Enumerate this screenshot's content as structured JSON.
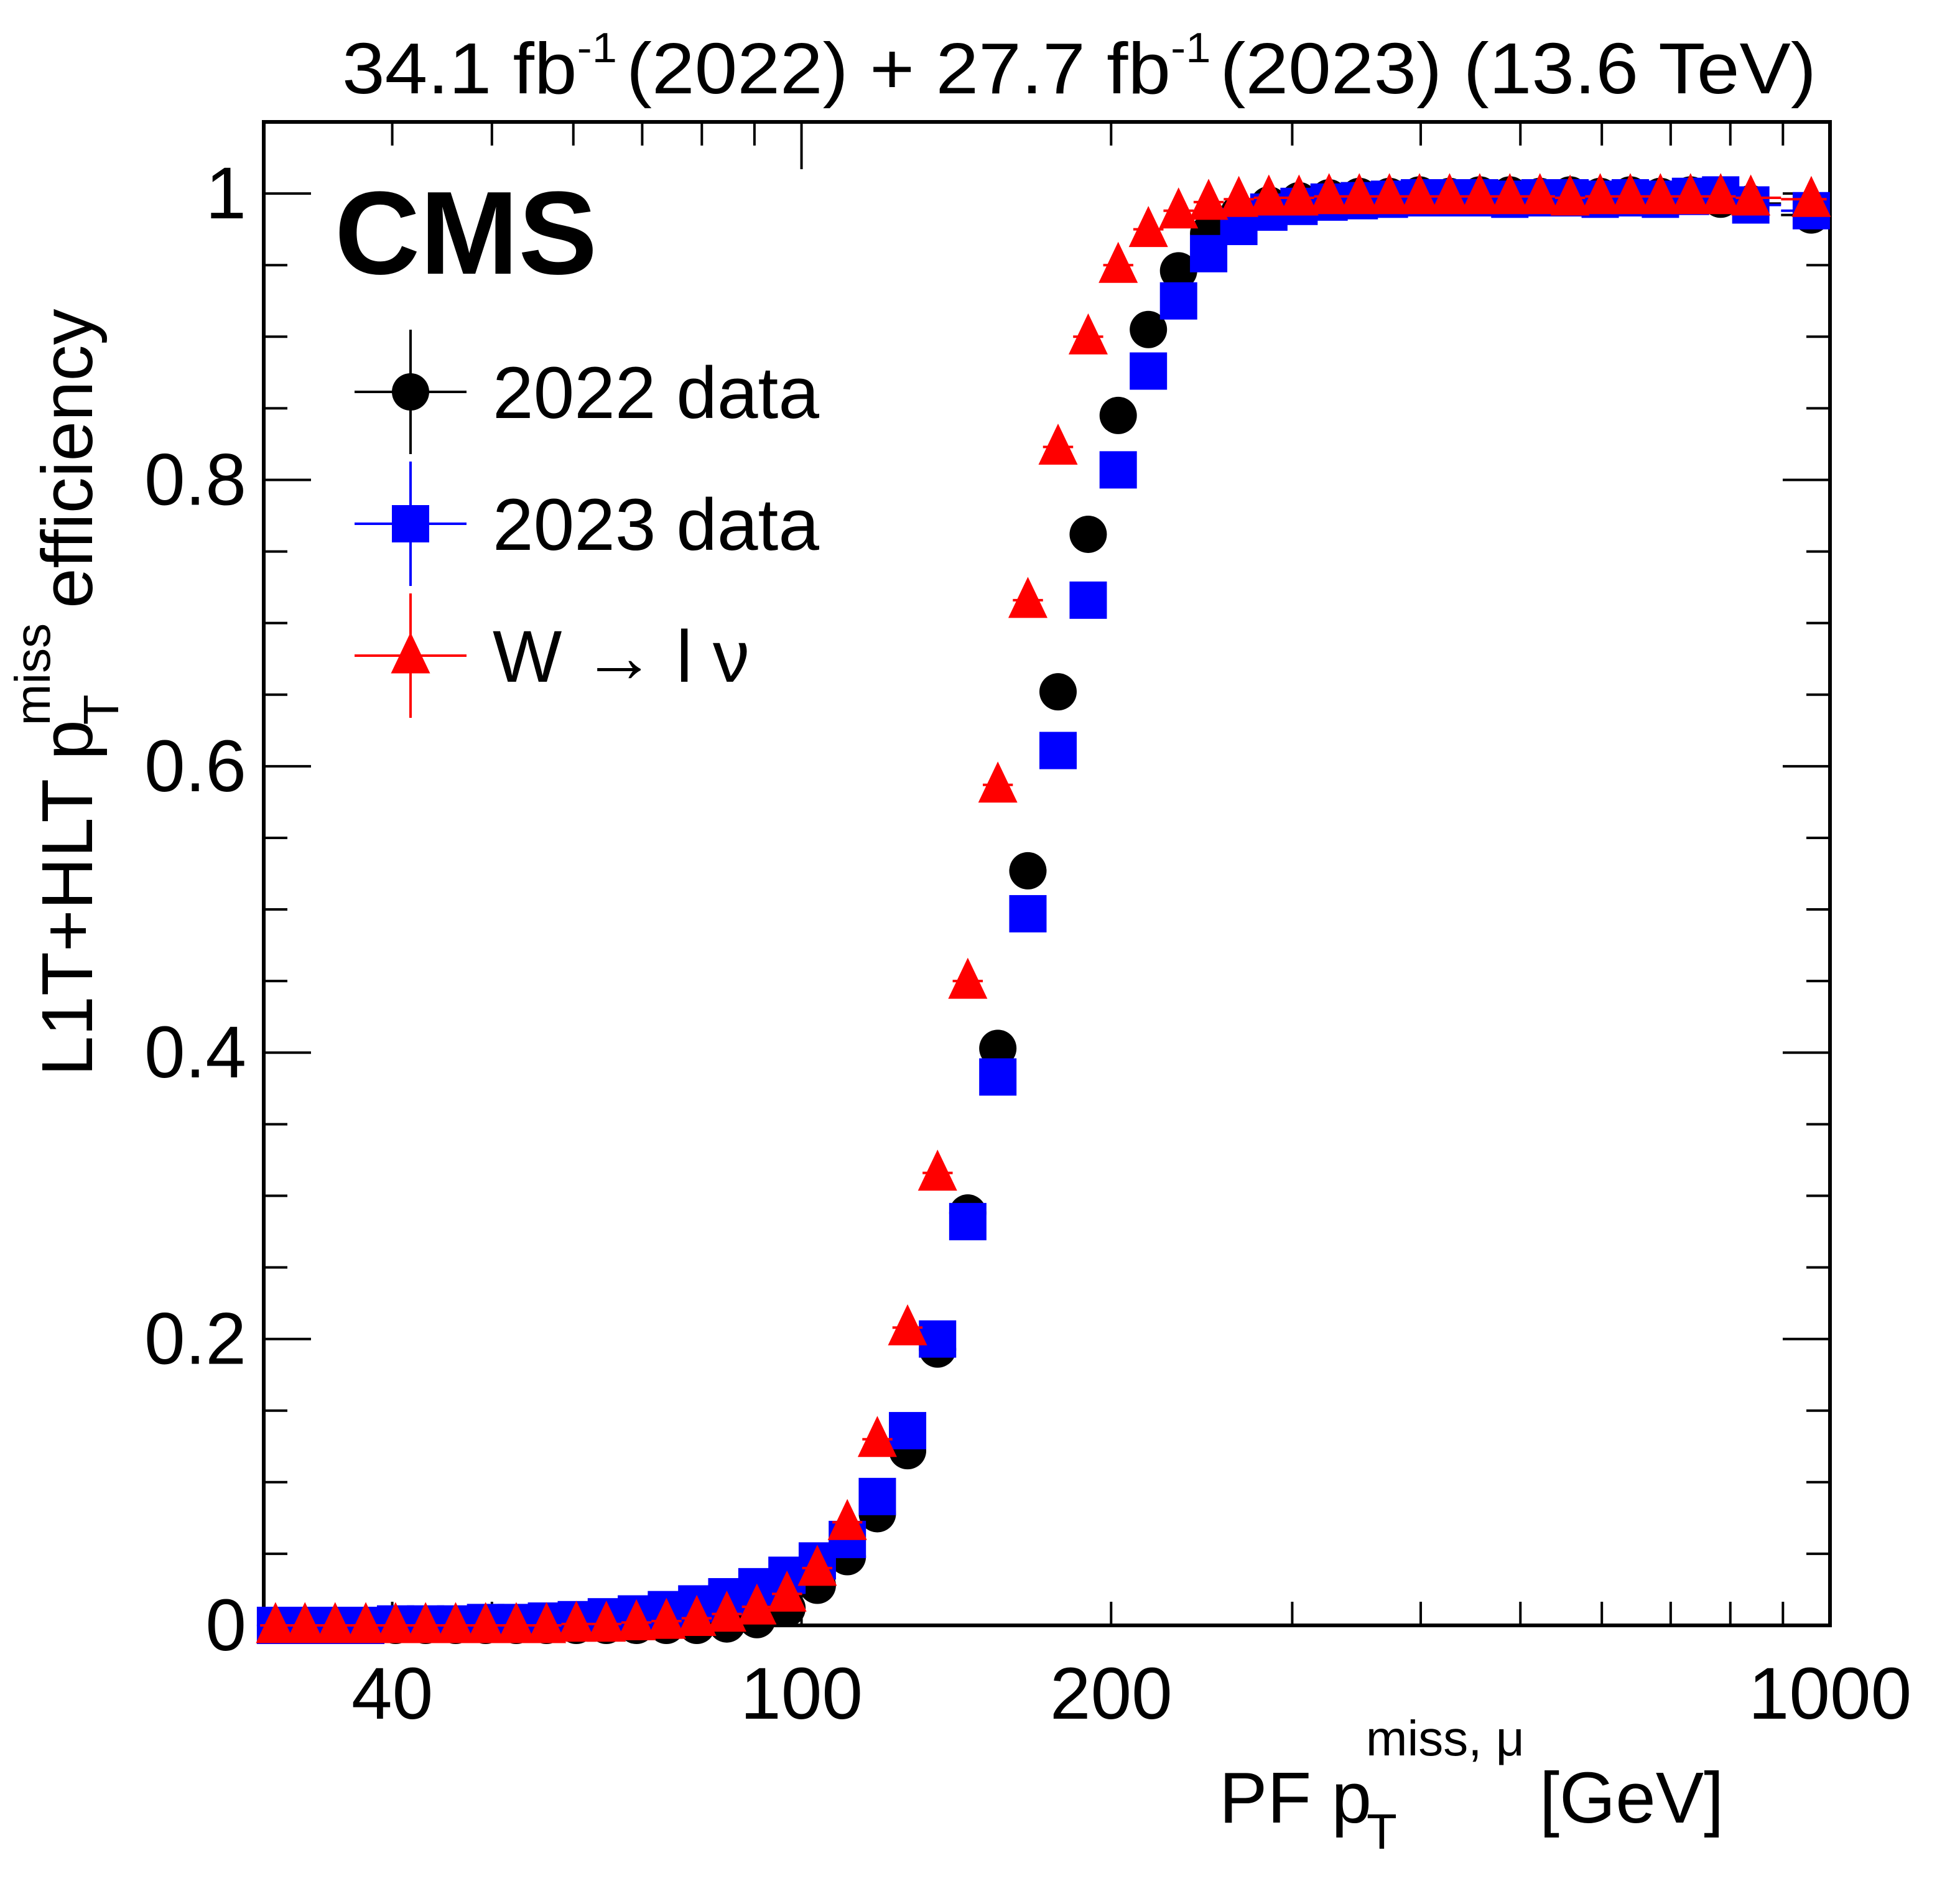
{
  "header": {
    "lumi_label": "34.1 fb",
    "lumi_exp": "-1",
    "lumi_year1": "(2022) + 27.7 fb",
    "lumi_exp2": "-1",
    "lumi_year2": "(2023) (13.6 TeV)"
  },
  "experiment_label": "CMS",
  "chart_data": {
    "type": "scatter",
    "title": "34.1 fb^-1 (2022) + 27.7 fb^-1 (2023) (13.6 TeV)",
    "xlabel": "PF p_T^{miss, μ} [GeV]",
    "xlabel_parts": {
      "main": "PF p",
      "sub": "T",
      "sup": "miss, μ",
      "unit": "[GeV]"
    },
    "ylabel": "L1T+HLT p_T^miss efficiency",
    "ylabel_parts": {
      "main": "L1T+HLT p",
      "sub": "T",
      "sup": "miss",
      "tail": "efficiency"
    },
    "xscale": "log",
    "xlim": [
      30,
      1000
    ],
    "ylim": [
      0,
      1.05
    ],
    "xticks": [
      {
        "value": 40,
        "label": "40"
      },
      {
        "value": 100,
        "label": "100"
      },
      {
        "value": 200,
        "label": "200"
      },
      {
        "value": 1000,
        "label": "1000"
      }
    ],
    "yticks": [
      {
        "value": 0,
        "label": "0"
      },
      {
        "value": 0.2,
        "label": "0.2"
      },
      {
        "value": 0.4,
        "label": "0.4"
      },
      {
        "value": 0.6,
        "label": "0.6"
      },
      {
        "value": 0.8,
        "label": "0.8"
      },
      {
        "value": 1,
        "label": "1"
      }
    ],
    "grid": false,
    "legend_position": "top-left",
    "x": [
      30.8,
      32.9,
      35.2,
      37.7,
      40.3,
      43.1,
      46.1,
      49.3,
      52.8,
      56.5,
      60.4,
      64.6,
      69.1,
      73.9,
      79.1,
      84.6,
      90.5,
      96.8,
      103.6,
      110.8,
      118.5,
      126.8,
      135.6,
      145.1,
      155.2,
      166.0,
      177.6,
      190.0,
      203.2,
      217.4,
      232.6,
      248.8,
      266.2,
      284.7,
      304.6,
      325.8,
      348.6,
      372.9,
      398.9,
      426.7,
      456.5,
      488.3,
      522.4,
      558.8,
      597.8,
      639.5,
      684.1,
      731.8,
      782.9,
      837.5,
      959.0
    ],
    "series": [
      {
        "name": "2022 data",
        "color": "#000000",
        "marker": "circle",
        "values": [
          0.0,
          0.0,
          0.0,
          0.0,
          0.0,
          0.0,
          0.0,
          0.0,
          0.0,
          0.0,
          0.0,
          0.0,
          0.0,
          0.0,
          0.0,
          0.001,
          0.004,
          0.012,
          0.028,
          0.048,
          0.078,
          0.122,
          0.193,
          0.288,
          0.403,
          0.527,
          0.652,
          0.762,
          0.845,
          0.905,
          0.946,
          0.972,
          0.986,
          0.992,
          0.995,
          0.997,
          0.998,
          0.998,
          0.999,
          0.998,
          0.999,
          0.999,
          0.998,
          0.999,
          0.998,
          0.999,
          0.998,
          0.999,
          0.996,
          0.993,
          0.985
        ]
      },
      {
        "name": "2023 data",
        "color": "#0000ff",
        "marker": "square",
        "values": [
          0.0,
          0.0,
          0.0,
          0.0,
          0.001,
          0.001,
          0.001,
          0.002,
          0.002,
          0.003,
          0.004,
          0.006,
          0.008,
          0.011,
          0.015,
          0.02,
          0.027,
          0.035,
          0.045,
          0.06,
          0.09,
          0.136,
          0.2,
          0.282,
          0.383,
          0.497,
          0.611,
          0.716,
          0.807,
          0.876,
          0.925,
          0.958,
          0.977,
          0.987,
          0.991,
          0.994,
          0.995,
          0.996,
          0.997,
          0.997,
          0.997,
          0.996,
          0.997,
          0.997,
          0.996,
          0.997,
          0.996,
          0.998,
          0.999,
          0.992,
          0.988
        ]
      },
      {
        "name": "W → l ν",
        "color": "#ff0000",
        "marker": "triangle",
        "values": [
          0.0,
          0.0,
          0.0,
          0.0,
          0.0,
          0.0,
          0.0,
          0.0,
          0.0,
          0.0,
          0.001,
          0.001,
          0.002,
          0.003,
          0.005,
          0.008,
          0.013,
          0.022,
          0.04,
          0.072,
          0.13,
          0.208,
          0.316,
          0.45,
          0.587,
          0.716,
          0.823,
          0.9,
          0.95,
          0.975,
          0.988,
          0.994,
          0.996,
          0.997,
          0.997,
          0.998,
          0.998,
          0.998,
          0.998,
          0.998,
          0.998,
          0.998,
          0.998,
          0.997,
          0.998,
          0.998,
          0.998,
          0.998,
          0.998,
          0.997,
          0.996
        ]
      }
    ]
  },
  "legend": [
    {
      "label": "2022 data",
      "marker": "circle",
      "color": "#000000"
    },
    {
      "label": "2023 data",
      "marker": "square",
      "color": "#0000ff"
    },
    {
      "label": "W → l ν",
      "marker": "triangle",
      "color": "#ff0000"
    }
  ]
}
